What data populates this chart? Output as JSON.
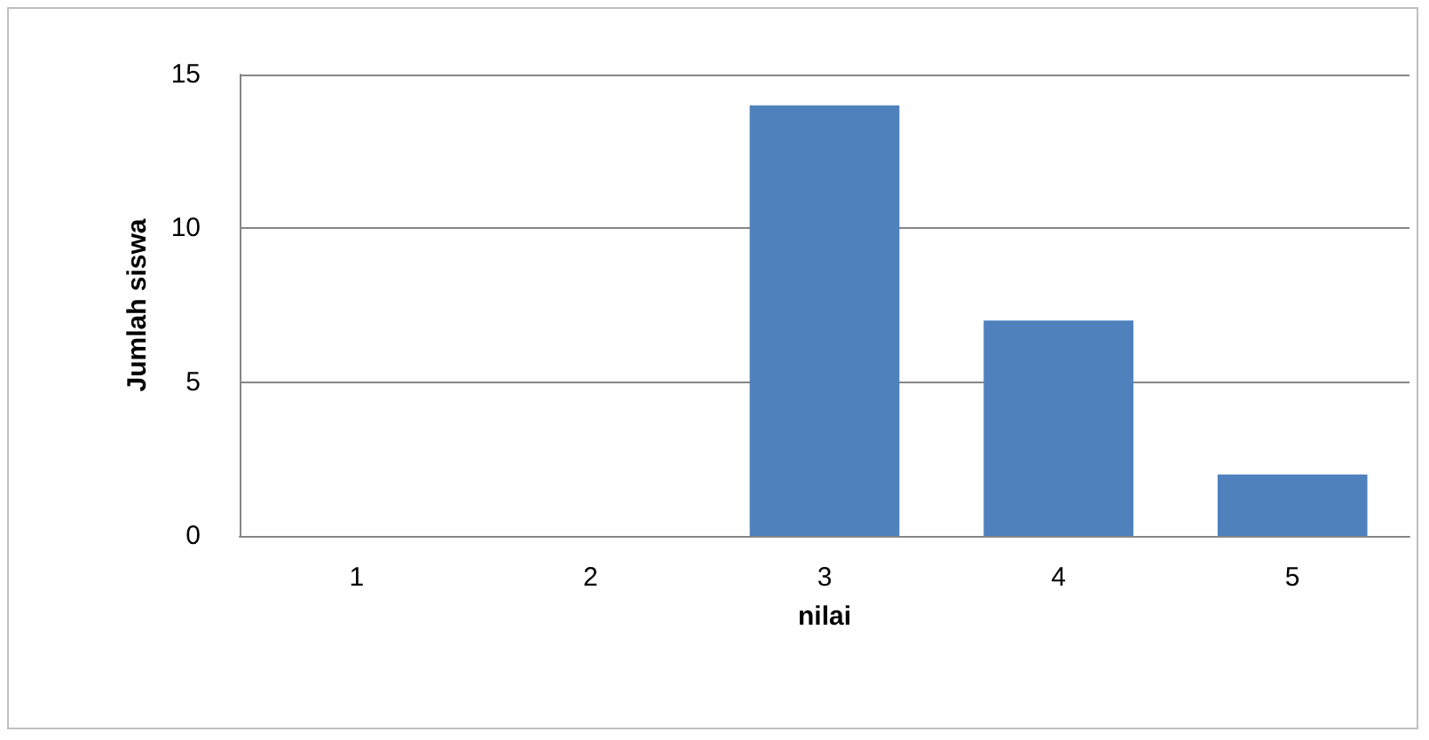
{
  "chart_data": {
    "type": "bar",
    "xlabel": "nilai",
    "ylabel": "Jumlah siswa",
    "categories": [
      "1",
      "2",
      "3",
      "4",
      "5"
    ],
    "values": [
      0,
      0,
      14,
      7,
      2
    ],
    "color": "#4f81bd",
    "ylim": [
      0,
      15
    ],
    "yticks": [
      0,
      5,
      10,
      15
    ],
    "grid": "y"
  }
}
